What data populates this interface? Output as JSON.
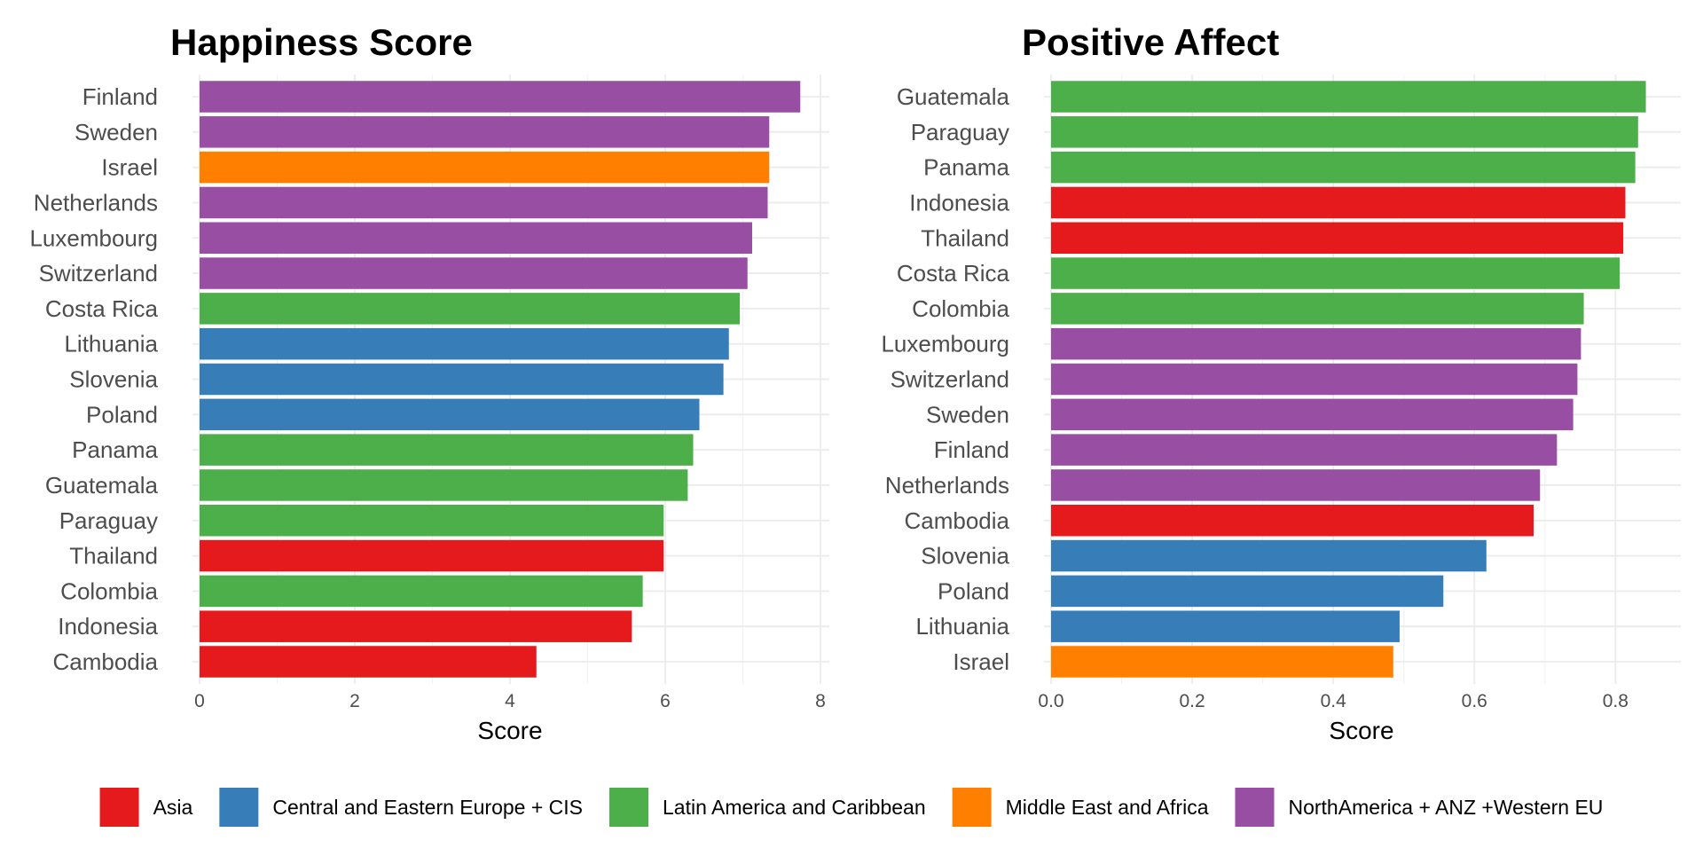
{
  "colors": {
    "Asia": "#e41a1c",
    "Central and Eastern Europe + CIS": "#377eb8",
    "Latin America and Caribbean": "#4daf4a",
    "Middle East and Africa": "#ff7f00",
    "NorthAmerica + ANZ +Western EU": "#984ea3"
  },
  "legend": {
    "items": [
      {
        "label": "Asia",
        "color": "#e41a1c"
      },
      {
        "label": "Central and Eastern Europe + CIS",
        "color": "#377eb8"
      },
      {
        "label": "Latin America and Caribbean",
        "color": "#4daf4a"
      },
      {
        "label": "Middle East and Africa",
        "color": "#ff7f00"
      },
      {
        "label": "NorthAmerica + ANZ +Western EU",
        "color": "#984ea3"
      }
    ]
  },
  "chart_data": [
    {
      "type": "bar",
      "orientation": "horizontal",
      "title": "Happiness Score",
      "xlabel": "Score",
      "ylabel": "",
      "xlim": [
        0,
        8
      ],
      "xticks": [
        0,
        2,
        4,
        6,
        8
      ],
      "xtick_labels": [
        "0",
        "2",
        "4",
        "6",
        "8"
      ],
      "grid": true,
      "categories": [
        "Finland",
        "Sweden",
        "Israel",
        "Netherlands",
        "Luxembourg",
        "Switzerland",
        "Costa Rica",
        "Lithuania",
        "Slovenia",
        "Poland",
        "Panama",
        "Guatemala",
        "Paraguay",
        "Thailand",
        "Colombia",
        "Indonesia",
        "Cambodia"
      ],
      "values": [
        7.74,
        7.34,
        7.34,
        7.32,
        7.12,
        7.06,
        6.96,
        6.82,
        6.75,
        6.44,
        6.36,
        6.29,
        5.98,
        5.98,
        5.71,
        5.57,
        4.34
      ],
      "regions": [
        "NorthAmerica + ANZ +Western EU",
        "NorthAmerica + ANZ +Western EU",
        "Middle East and Africa",
        "NorthAmerica + ANZ +Western EU",
        "NorthAmerica + ANZ +Western EU",
        "NorthAmerica + ANZ +Western EU",
        "Latin America and Caribbean",
        "Central and Eastern Europe + CIS",
        "Central and Eastern Europe + CIS",
        "Central and Eastern Europe + CIS",
        "Latin America and Caribbean",
        "Latin America and Caribbean",
        "Latin America and Caribbean",
        "Asia",
        "Latin America and Caribbean",
        "Asia",
        "Asia"
      ]
    },
    {
      "type": "bar",
      "orientation": "horizontal",
      "title": "Positive Affect",
      "xlabel": "Score",
      "ylabel": "",
      "xlim": [
        0,
        0.88
      ],
      "xticks": [
        0,
        0.2,
        0.4,
        0.6,
        0.8
      ],
      "xtick_labels": [
        "0.0",
        "0.2",
        "0.4",
        "0.6",
        "0.8"
      ],
      "grid": true,
      "categories": [
        "Guatemala",
        "Paraguay",
        "Panama",
        "Indonesia",
        "Thailand",
        "Costa Rica",
        "Colombia",
        "Luxembourg",
        "Switzerland",
        "Sweden",
        "Finland",
        "Netherlands",
        "Cambodia",
        "Slovenia",
        "Poland",
        "Lithuania",
        "Israel"
      ],
      "values": [
        0.843,
        0.832,
        0.828,
        0.814,
        0.811,
        0.806,
        0.755,
        0.751,
        0.746,
        0.74,
        0.717,
        0.693,
        0.684,
        0.617,
        0.556,
        0.494,
        0.485
      ],
      "regions": [
        "Latin America and Caribbean",
        "Latin America and Caribbean",
        "Latin America and Caribbean",
        "Asia",
        "Asia",
        "Latin America and Caribbean",
        "Latin America and Caribbean",
        "NorthAmerica + ANZ +Western EU",
        "NorthAmerica + ANZ +Western EU",
        "NorthAmerica + ANZ +Western EU",
        "NorthAmerica + ANZ +Western EU",
        "NorthAmerica + ANZ +Western EU",
        "Asia",
        "Central and Eastern Europe + CIS",
        "Central and Eastern Europe + CIS",
        "Central and Eastern Europe + CIS",
        "Middle East and Africa"
      ]
    }
  ]
}
